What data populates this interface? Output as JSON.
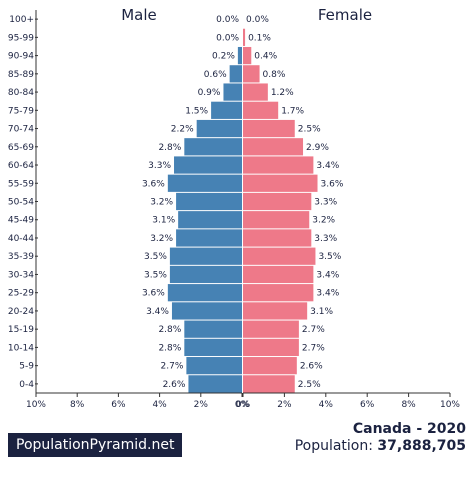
{
  "chart_data": {
    "type": "bar",
    "orientation": "horizontal-population-pyramid",
    "categories": [
      "100+",
      "95-99",
      "90-94",
      "85-89",
      "80-84",
      "75-79",
      "70-74",
      "65-69",
      "60-64",
      "55-59",
      "50-54",
      "45-49",
      "40-44",
      "35-39",
      "30-34",
      "25-29",
      "20-24",
      "15-19",
      "10-14",
      "5-9",
      "0-4"
    ],
    "series": [
      {
        "name": "Male",
        "color": "#4682b4",
        "values": [
          0.0,
          0.0,
          0.2,
          0.6,
          0.9,
          1.5,
          2.2,
          2.8,
          3.3,
          3.6,
          3.2,
          3.1,
          3.2,
          3.5,
          3.5,
          3.6,
          3.4,
          2.8,
          2.8,
          2.7,
          2.6
        ],
        "labels": [
          "0.0%",
          "0.0%",
          "0.2%",
          "0.6%",
          "0.9%",
          "1.5%",
          "2.2%",
          "2.8%",
          "3.3%",
          "3.6%",
          "3.2%",
          "3.1%",
          "3.2%",
          "3.5%",
          "3.5%",
          "3.6%",
          "3.4%",
          "2.8%",
          "2.8%",
          "2.7%",
          "2.6%"
        ]
      },
      {
        "name": "Female",
        "color": "#ee7989",
        "values": [
          0.0,
          0.1,
          0.4,
          0.8,
          1.2,
          1.7,
          2.5,
          2.9,
          3.4,
          3.6,
          3.3,
          3.2,
          3.3,
          3.5,
          3.4,
          3.4,
          3.1,
          2.7,
          2.7,
          2.6,
          2.5
        ],
        "labels": [
          "0.0%",
          "0.1%",
          "0.4%",
          "0.8%",
          "1.2%",
          "1.7%",
          "2.5%",
          "2.9%",
          "3.4%",
          "3.6%",
          "3.3%",
          "3.2%",
          "3.3%",
          "3.5%",
          "3.4%",
          "3.4%",
          "3.1%",
          "2.7%",
          "2.7%",
          "2.6%",
          "2.5%"
        ]
      }
    ],
    "xlim": [
      0,
      10
    ],
    "left_ticks": [
      "10%",
      "8%",
      "6%",
      "4%",
      "2%",
      "0%"
    ],
    "right_ticks": [
      "0%",
      "2%",
      "4%",
      "6%",
      "8%",
      "10%"
    ],
    "label_text_color": "#1b2240"
  },
  "footer": {
    "brand": "PopulationPyramid.net",
    "country": "Canada - 2020",
    "population_label": "Population:",
    "population_value": "37,888,705"
  }
}
